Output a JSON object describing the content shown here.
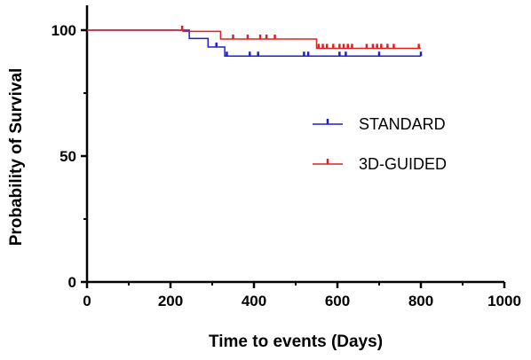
{
  "chart_data": {
    "type": "line",
    "subtype": "kaplan-meier",
    "title": "",
    "xlabel": "Time to events (Days)",
    "ylabel": "Probability of Survival",
    "xlim": [
      0,
      1000
    ],
    "ylim": [
      0,
      100
    ],
    "x_ticks": [
      "0",
      "200",
      "400",
      "600",
      "800",
      "1000"
    ],
    "y_ticks": [
      "0",
      "50",
      "100"
    ],
    "grid": false,
    "legend_position": "right",
    "series": [
      {
        "name": "STANDARD",
        "color": "#1f1fcc",
        "steps": [
          [
            0,
            100
          ],
          [
            245,
            100
          ],
          [
            245,
            96.7
          ],
          [
            290,
            96.7
          ],
          [
            290,
            93.3
          ],
          [
            330,
            93.3
          ],
          [
            330,
            89.7
          ],
          [
            800,
            89.7
          ]
        ],
        "censor_x": [
          310,
          335,
          390,
          410,
          520,
          530,
          605,
          620,
          700,
          800
        ]
      },
      {
        "name": "3D-GUIDED",
        "color": "#e02020",
        "steps": [
          [
            0,
            100
          ],
          [
            230,
            100
          ],
          [
            230,
            99.5
          ],
          [
            320,
            99.5
          ],
          [
            320,
            96.5
          ],
          [
            550,
            96.5
          ],
          [
            550,
            92.8
          ],
          [
            800,
            92.8
          ]
        ],
        "censor_x": [
          228,
          350,
          385,
          415,
          430,
          450,
          555,
          565,
          575,
          590,
          605,
          615,
          625,
          635,
          670,
          685,
          695,
          705,
          720,
          735,
          795
        ]
      }
    ]
  }
}
